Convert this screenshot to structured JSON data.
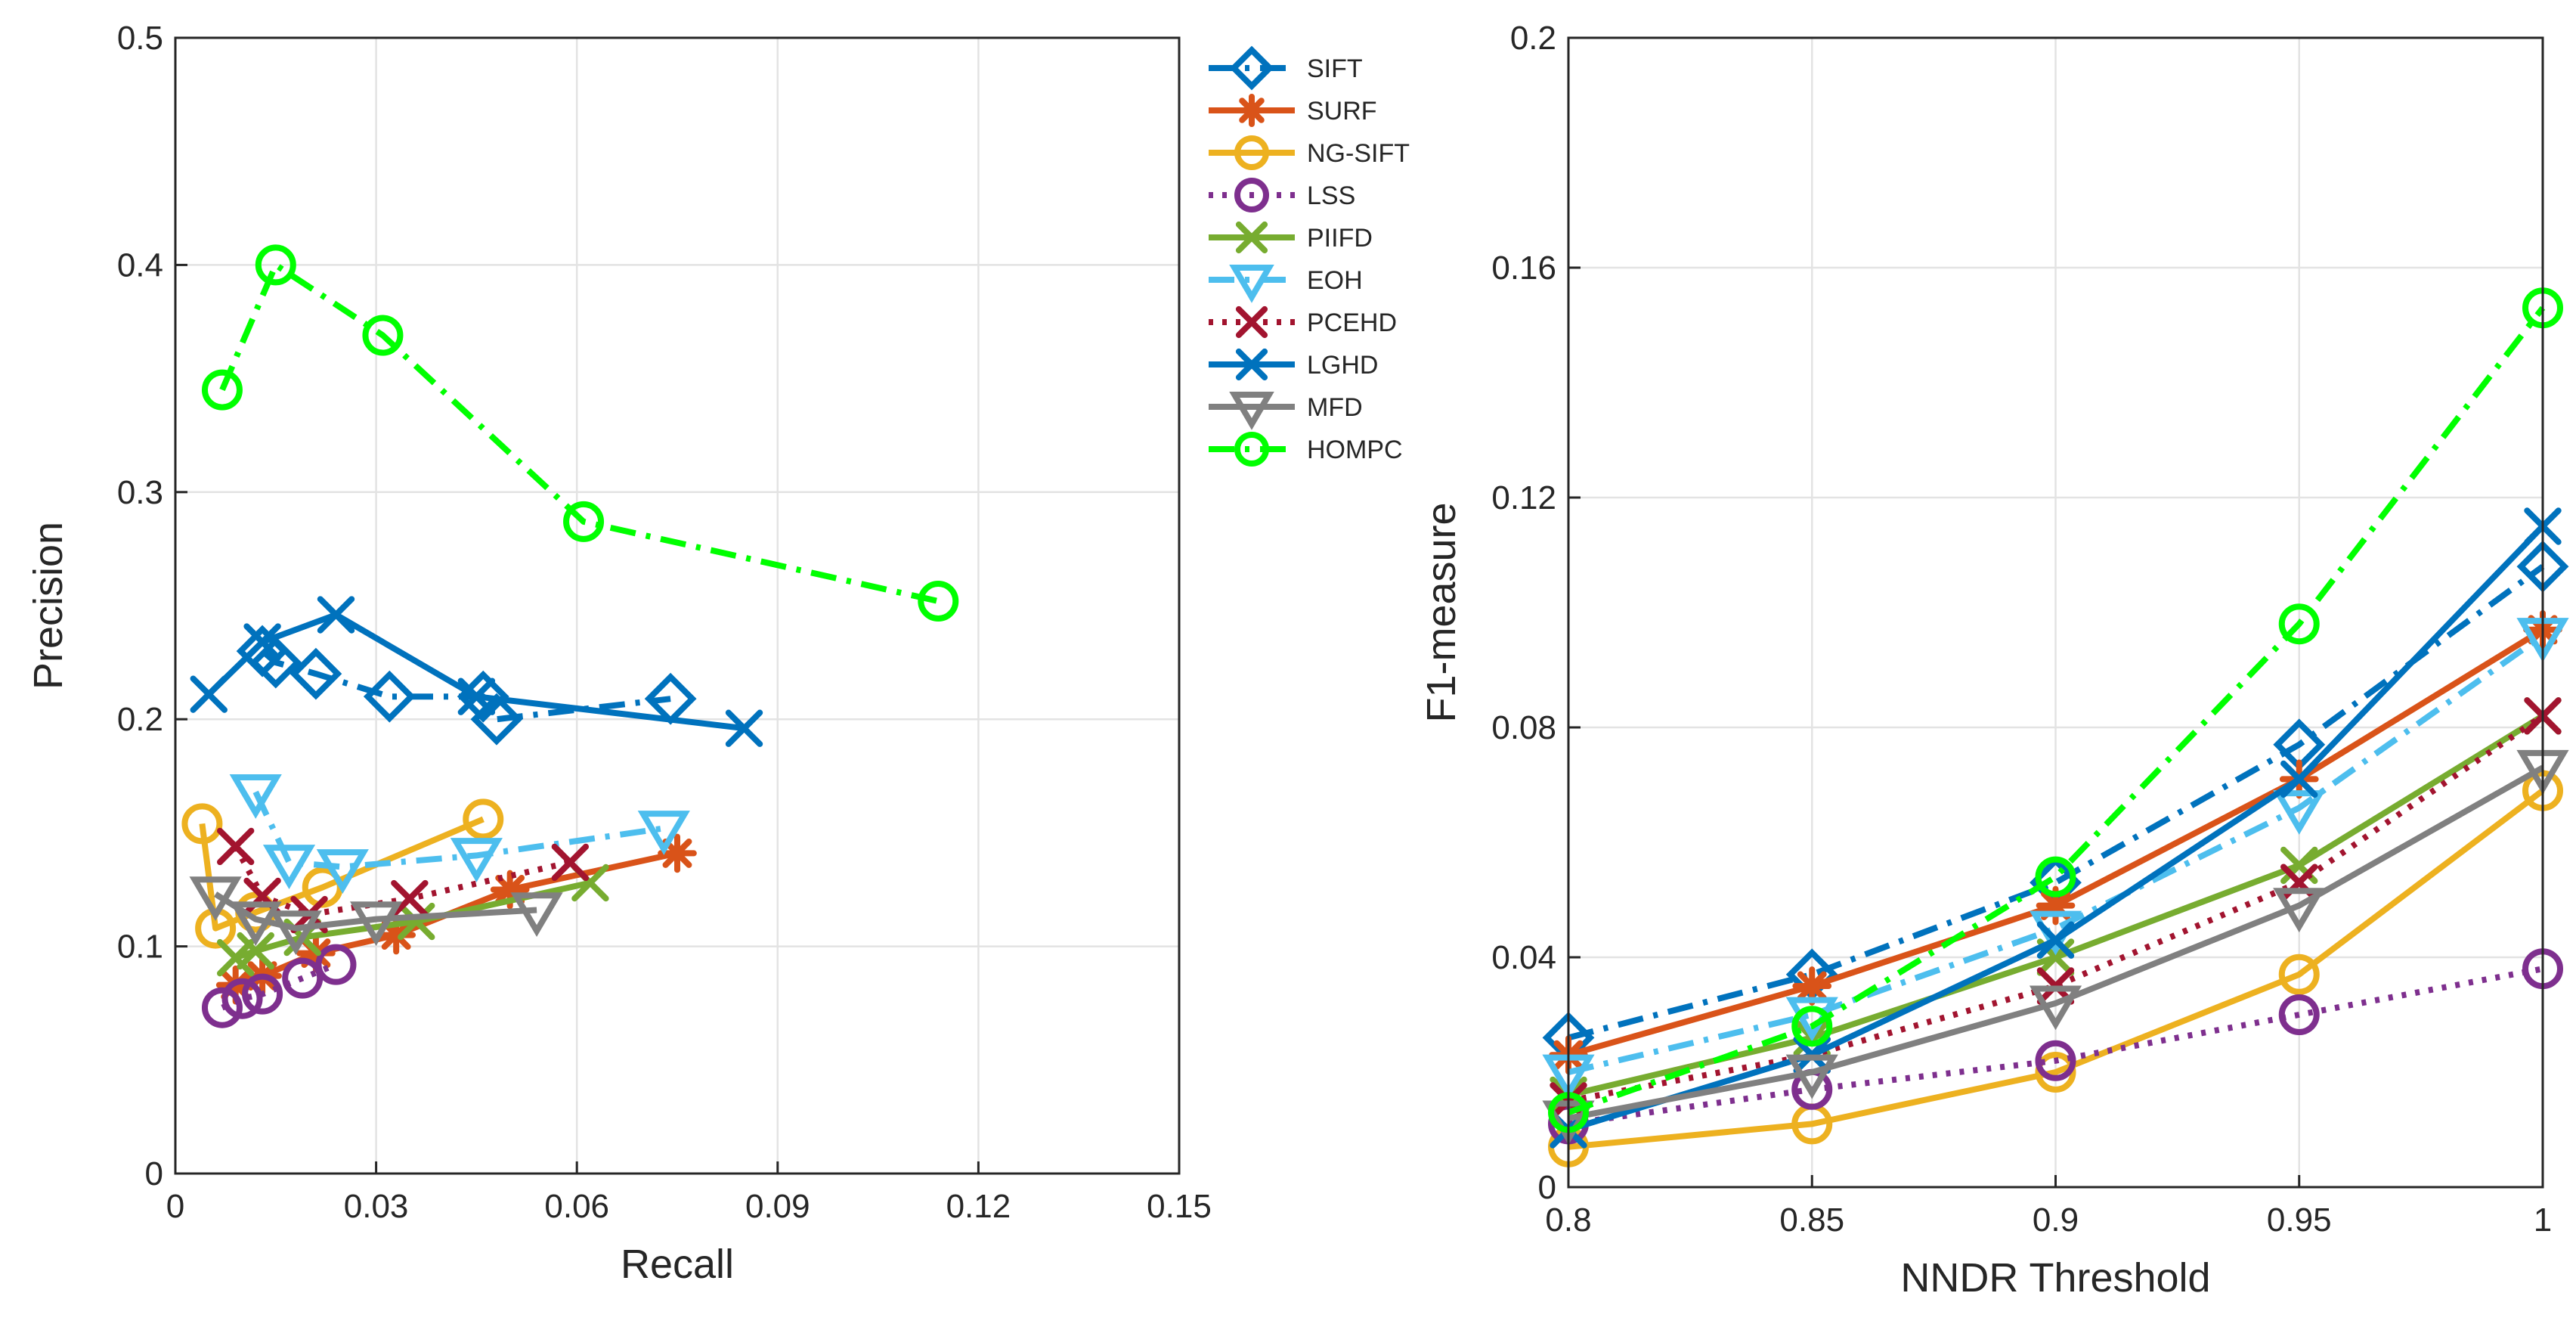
{
  "chart_data": [
    {
      "type": "line",
      "title": "",
      "xlabel": "Recall",
      "ylabel": "Precision",
      "xlim": [
        0,
        0.15
      ],
      "ylim": [
        0,
        0.5
      ],
      "xticks": [
        0,
        0.03,
        0.06,
        0.09,
        0.12,
        0.15
      ],
      "xtick_labels": [
        "0",
        "0.03",
        "0.06",
        "0.09",
        "0.12",
        "0.15"
      ],
      "yticks": [
        0,
        0.1,
        0.2,
        0.3,
        0.4,
        0.5
      ],
      "ytick_labels": [
        "0",
        "0.1",
        "0.2",
        "0.3",
        "0.4",
        "0.5"
      ],
      "grid": true,
      "series": [
        {
          "name": "SIFT",
          "x": [
            0.013,
            0.015,
            0.021,
            0.032,
            0.046,
            0.048,
            0.074
          ],
          "y": [
            0.23,
            0.225,
            0.22,
            0.21,
            0.21,
            0.2,
            0.209
          ]
        },
        {
          "name": "SURF",
          "x": [
            0.009,
            0.013,
            0.021,
            0.033,
            0.05,
            0.075
          ],
          "y": [
            0.083,
            0.087,
            0.097,
            0.105,
            0.125,
            0.141
          ]
        },
        {
          "name": "NG-SIFT",
          "x": [
            0.004,
            0.006,
            0.012,
            0.022,
            0.046
          ],
          "y": [
            0.154,
            0.108,
            0.115,
            0.126,
            0.156
          ]
        },
        {
          "name": "LSS",
          "x": [
            0.007,
            0.01,
            0.013,
            0.019,
            0.024
          ],
          "y": [
            0.073,
            0.077,
            0.079,
            0.086,
            0.092
          ]
        },
        {
          "name": "PIIFD",
          "x": [
            0.009,
            0.012,
            0.019,
            0.036,
            0.062
          ],
          "y": [
            0.095,
            0.098,
            0.104,
            0.111,
            0.128
          ]
        },
        {
          "name": "EOH",
          "x": [
            0.012,
            0.017,
            0.025,
            0.045,
            0.073
          ],
          "y": [
            0.168,
            0.137,
            0.135,
            0.14,
            0.152
          ]
        },
        {
          "name": "PCEHD",
          "x": [
            0.009,
            0.013,
            0.02,
            0.035,
            0.059
          ],
          "y": [
            0.144,
            0.122,
            0.114,
            0.121,
            0.137
          ]
        },
        {
          "name": "LGHD",
          "x": [
            0.005,
            0.013,
            0.024,
            0.045,
            0.085
          ],
          "y": [
            0.211,
            0.234,
            0.246,
            0.21,
            0.196
          ]
        },
        {
          "name": "MFD",
          "x": [
            0.006,
            0.012,
            0.018,
            0.03,
            0.054
          ],
          "y": [
            0.123,
            0.112,
            0.108,
            0.112,
            0.116
          ]
        },
        {
          "name": "HOMPC",
          "x": [
            0.007,
            0.015,
            0.031,
            0.061,
            0.114
          ],
          "y": [
            0.345,
            0.4,
            0.369,
            0.287,
            0.252
          ]
        }
      ]
    },
    {
      "type": "line",
      "title": "",
      "xlabel": "NNDR Threshold",
      "ylabel": "F1-measure",
      "xlim": [
        0.8,
        1
      ],
      "ylim": [
        0,
        0.2
      ],
      "xticks": [
        0.8,
        0.85,
        0.9,
        0.95,
        1
      ],
      "xtick_labels": [
        "0.8",
        "0.85",
        "0.9",
        "0.95",
        "1"
      ],
      "yticks": [
        0,
        0.04,
        0.08,
        0.12,
        0.16,
        0.2
      ],
      "ytick_labels": [
        "0",
        "0.04",
        "0.08",
        "0.12",
        "0.16",
        "0.2"
      ],
      "grid": true,
      "x": [
        0.8,
        0.85,
        0.9,
        0.95,
        1
      ],
      "series": [
        {
          "name": "SIFT",
          "values": [
            0.026,
            0.037,
            0.053,
            0.077,
            0.108
          ]
        },
        {
          "name": "SURF",
          "values": [
            0.023,
            0.035,
            0.049,
            0.071,
            0.097
          ]
        },
        {
          "name": "NG-SIFT",
          "values": [
            0.007,
            0.011,
            0.02,
            0.037,
            0.069
          ]
        },
        {
          "name": "LSS",
          "values": [
            0.011,
            0.017,
            0.022,
            0.03,
            0.038
          ]
        },
        {
          "name": "PIIFD",
          "values": [
            0.016,
            0.026,
            0.04,
            0.056,
            0.082
          ]
        },
        {
          "name": "EOH",
          "values": [
            0.02,
            0.03,
            0.045,
            0.066,
            0.096
          ]
        },
        {
          "name": "PCEHD",
          "values": [
            0.015,
            0.023,
            0.035,
            0.053,
            0.082
          ]
        },
        {
          "name": "LGHD",
          "values": [
            0.01,
            0.023,
            0.043,
            0.071,
            0.115
          ]
        },
        {
          "name": "MFD",
          "values": [
            0.012,
            0.02,
            0.032,
            0.049,
            0.073
          ]
        },
        {
          "name": "HOMPC",
          "values": [
            0.013,
            0.028,
            0.054,
            0.098,
            0.153
          ]
        }
      ]
    }
  ],
  "legend": {
    "placement": "between-panels-top",
    "entries": [
      "SIFT",
      "SURF",
      "NG-SIFT",
      "LSS",
      "PIIFD",
      "EOH",
      "PCEHD",
      "LGHD",
      "MFD",
      "HOMPC"
    ]
  },
  "series_styles": {
    "SIFT": {
      "color": "#0072BD",
      "dash": "dashdot",
      "marker": "diamond"
    },
    "SURF": {
      "color": "#D95319",
      "dash": "solid",
      "marker": "asterisk"
    },
    "NG-SIFT": {
      "color": "#EDB120",
      "dash": "solid",
      "marker": "circle"
    },
    "LSS": {
      "color": "#7E2F8E",
      "dash": "dotted",
      "marker": "circle"
    },
    "PIIFD": {
      "color": "#77AC30",
      "dash": "solid",
      "marker": "x"
    },
    "EOH": {
      "color": "#4DBEEE",
      "dash": "dashdot",
      "marker": "triangle-down"
    },
    "PCEHD": {
      "color": "#A2142F",
      "dash": "dotted",
      "marker": "x"
    },
    "LGHD": {
      "color": "#0072BD",
      "dash": "solid",
      "marker": "x"
    },
    "MFD": {
      "color": "#808080",
      "dash": "solid",
      "marker": "triangle-down"
    },
    "HOMPC": {
      "color": "#00FF00",
      "dash": "dashdot",
      "marker": "circle"
    }
  }
}
